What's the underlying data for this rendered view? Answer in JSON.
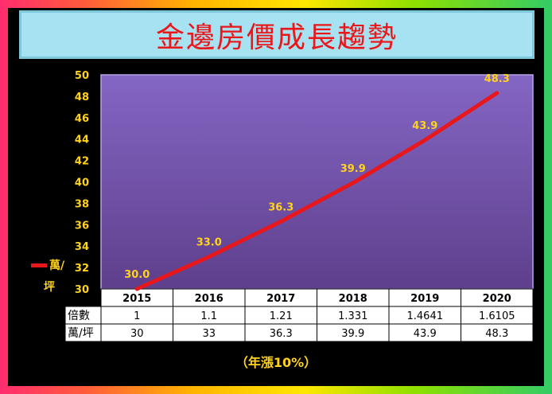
{
  "title": "金邊房價成長趨勢",
  "note": "（年漲10%）",
  "legend": {
    "label_line1": "萬/",
    "label_line2": "坪",
    "color": "#e8171b"
  },
  "table": {
    "row_labels": [
      "倍數",
      "萬/坪"
    ],
    "multipliers": [
      "1",
      "1.1",
      "1.21",
      "1.331",
      "1.4641",
      "1.6105"
    ],
    "prices": [
      "30",
      "33",
      "36.3",
      "39.9",
      "43.9",
      "48.3"
    ]
  },
  "colors": {
    "plot_top": "#8466c4",
    "plot_bottom": "#5e3f8c",
    "line": "#e8171b",
    "label": "#ffd21c",
    "background": "#000000"
  },
  "chart_data": {
    "type": "line",
    "categories": [
      "2015",
      "2016",
      "2017",
      "2018",
      "2019",
      "2020"
    ],
    "series": [
      {
        "values": [
          30.0,
          33.0,
          36.3,
          39.9,
          43.9,
          48.3
        ]
      }
    ],
    "data_labels": [
      "30.0",
      "33.0",
      "36.3",
      "39.9",
      "43.9",
      "48.3"
    ],
    "yticks": [
      30,
      32,
      34,
      36,
      38,
      40,
      42,
      44,
      46,
      48,
      50
    ],
    "ylim": [
      30,
      50
    ],
    "ylabel": "",
    "xlabel": "",
    "grid": false,
    "legend_position": "left"
  }
}
